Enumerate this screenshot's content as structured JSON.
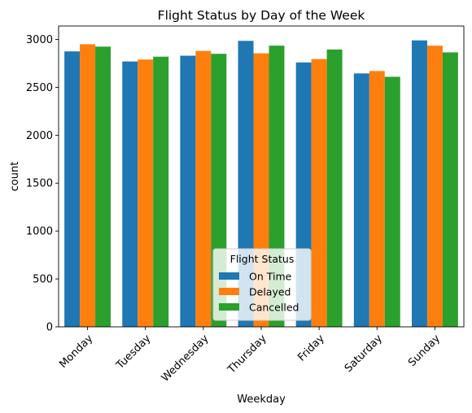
{
  "chart_data": {
    "type": "bar",
    "title": "Flight Status by Day of the Week",
    "xlabel": "Weekday",
    "ylabel": "count",
    "categories": [
      "Monday",
      "Tuesday",
      "Wednesday",
      "Thursday",
      "Friday",
      "Saturday",
      "Sunday"
    ],
    "series": [
      {
        "name": "On Time",
        "color": "#1f77b4",
        "values": [
          2875,
          2770,
          2830,
          2985,
          2760,
          2645,
          2990
        ]
      },
      {
        "name": "Delayed",
        "color": "#ff7f0e",
        "values": [
          2950,
          2790,
          2880,
          2855,
          2795,
          2670,
          2935
        ]
      },
      {
        "name": "Cancelled",
        "color": "#2ca02c",
        "values": [
          2925,
          2820,
          2850,
          2935,
          2895,
          2610,
          2865
        ]
      }
    ],
    "yticks": [
      0,
      500,
      1000,
      1500,
      2000,
      2500,
      3000
    ],
    "ylim": [
      0,
      3140
    ],
    "grid": false,
    "legend": {
      "title": "Flight Status",
      "position": "lower-center"
    }
  }
}
